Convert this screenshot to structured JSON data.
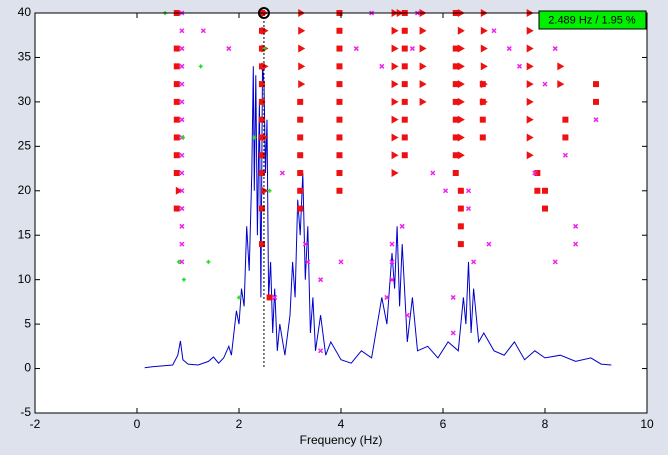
{
  "chart_data": {
    "type": "stabilization",
    "xlabel": "Frequency (Hz)",
    "xlim": [
      -2,
      10
    ],
    "xticks": [
      -2,
      0,
      2,
      4,
      6,
      8,
      10
    ],
    "ylim": [
      -5,
      40
    ],
    "yticks": [
      -5,
      0,
      5,
      10,
      15,
      20,
      25,
      30,
      35,
      40
    ],
    "grid": false,
    "cursor": {
      "x": 2.489,
      "y": 40,
      "label": "2.489 Hz / 1.95 %",
      "color": "#00ee00"
    },
    "series": [
      {
        "marker": "square",
        "color": "#ee1111",
        "x": [
          0.78,
          0.78,
          0.78,
          0.78,
          0.78,
          0.78,
          0.78,
          0.78,
          0.78,
          0.78,
          2.45,
          2.45,
          2.45,
          2.45,
          2.45,
          2.45,
          2.45,
          2.45,
          2.45,
          2.45,
          2.45,
          2.45,
          3.2,
          3.2,
          3.2,
          3.2,
          3.2,
          3.2,
          3.2,
          3.97,
          3.97,
          3.97,
          3.97,
          3.97,
          3.97,
          3.97,
          3.97,
          3.97,
          3.97,
          3.97,
          5.25,
          5.25,
          5.25,
          5.25,
          5.25,
          5.25,
          5.25,
          5.25,
          5.25,
          6.25,
          6.25,
          6.25,
          6.25,
          6.25,
          6.25,
          6.25,
          6.25,
          6.25,
          6.35,
          6.35,
          6.35,
          6.35,
          6.78,
          6.78,
          6.78,
          6.78,
          7.85,
          7.85,
          8.0,
          8.0,
          8.4,
          8.4,
          9.0,
          9.0,
          2.6
        ],
        "values": [
          40,
          36,
          34,
          32,
          30,
          28,
          26,
          24,
          22,
          18,
          40,
          38,
          36,
          34,
          32,
          30,
          28,
          26,
          24,
          22,
          18,
          14,
          30,
          28,
          26,
          24,
          22,
          20,
          18,
          40,
          38,
          36,
          34,
          32,
          30,
          28,
          26,
          24,
          22,
          20,
          40,
          38,
          36,
          34,
          32,
          30,
          28,
          26,
          24,
          40,
          36,
          34,
          32,
          30,
          28,
          26,
          24,
          22,
          18,
          16,
          14,
          20,
          32,
          30,
          28,
          26,
          22,
          20,
          20,
          18,
          28,
          26,
          32,
          30,
          8
        ]
      },
      {
        "marker": "triangle",
        "color": "#ee1111",
        "x": [
          0.82,
          2.5,
          2.5,
          2.5,
          2.5,
          2.5,
          2.5,
          3.22,
          3.22,
          3.22,
          3.22,
          3.22,
          5.05,
          5.05,
          5.05,
          5.05,
          5.05,
          5.05,
          5.05,
          5.05,
          5.05,
          5.05,
          5.15,
          5.6,
          5.6,
          5.6,
          5.6,
          5.6,
          5.6,
          6.35,
          6.35,
          6.35,
          6.35,
          6.35,
          6.35,
          6.35,
          6.35,
          6.35,
          6.8,
          6.8,
          6.8,
          6.8,
          6.8,
          6.8,
          7.7,
          7.7,
          7.7,
          7.7,
          7.7,
          7.7,
          7.7,
          7.7,
          7.7,
          8.3,
          8.3
        ],
        "values": [
          20,
          40,
          38,
          36,
          34,
          26,
          20,
          40,
          38,
          36,
          34,
          32,
          40,
          38,
          36,
          34,
          32,
          30,
          28,
          26,
          24,
          22,
          40,
          40,
          38,
          36,
          34,
          32,
          30,
          40,
          38,
          36,
          34,
          32,
          30,
          28,
          26,
          24,
          40,
          38,
          36,
          34,
          32,
          30,
          40,
          38,
          36,
          34,
          32,
          30,
          28,
          26,
          24,
          34,
          32
        ]
      },
      {
        "marker": "cross",
        "color": "#ee22ee",
        "x": [
          0.88,
          0.88,
          0.88,
          0.88,
          0.88,
          0.88,
          0.88,
          0.88,
          0.88,
          0.88,
          0.88,
          0.88,
          0.88,
          0.88,
          0.88,
          1.3,
          1.8,
          2.7,
          2.85,
          3.3,
          3.35,
          3.6,
          3.6,
          4.0,
          4.3,
          4.8,
          5.0,
          5.0,
          5.0,
          5.2,
          5.4,
          4.9,
          5.3,
          5.8,
          6.05,
          6.2,
          6.2,
          6.5,
          6.5,
          6.6,
          6.9,
          7.0,
          7.3,
          7.5,
          7.8,
          8.0,
          8.2,
          8.4,
          8.6,
          8.6,
          8.2,
          9.0,
          8.5,
          5.5,
          4.6
        ],
        "values": [
          40,
          38,
          36,
          34,
          32,
          30,
          28,
          26,
          24,
          22,
          20,
          18,
          16,
          14,
          12,
          38,
          36,
          8,
          22,
          14,
          12,
          10,
          2,
          12,
          36,
          34,
          14,
          12,
          10,
          16,
          36,
          8,
          6,
          22,
          20,
          8,
          4,
          20,
          18,
          12,
          14,
          38,
          36,
          34,
          22,
          32,
          36,
          24,
          16,
          14,
          12,
          28,
          40,
          40,
          40
        ]
      },
      {
        "marker": "dot",
        "color": "#22dd22",
        "x": [
          0.55,
          1.25,
          0.82,
          0.92,
          1.4,
          2.3,
          2.5,
          2.6,
          2.0,
          0.9
        ],
        "values": [
          40,
          34,
          12,
          10,
          12,
          26,
          36,
          20,
          8,
          26
        ]
      },
      {
        "marker": "line",
        "color": "#0000cc",
        "x": [
          0.15,
          0.3,
          0.5,
          0.7,
          0.8,
          0.85,
          0.9,
          1.0,
          1.2,
          1.4,
          1.5,
          1.6,
          1.7,
          1.8,
          1.85,
          1.9,
          1.95,
          2.0,
          2.05,
          2.1,
          2.15,
          2.2,
          2.25,
          2.28,
          2.3,
          2.33,
          2.36,
          2.4,
          2.43,
          2.46,
          2.49,
          2.52,
          2.55,
          2.58,
          2.62,
          2.66,
          2.7,
          2.75,
          2.8,
          2.9,
          3.0,
          3.05,
          3.1,
          3.15,
          3.2,
          3.25,
          3.3,
          3.35,
          3.4,
          3.45,
          3.5,
          3.6,
          3.7,
          3.8,
          4.0,
          4.2,
          4.4,
          4.6,
          4.8,
          4.9,
          5.0,
          5.05,
          5.1,
          5.15,
          5.2,
          5.3,
          5.4,
          5.5,
          5.7,
          5.9,
          6.1,
          6.3,
          6.4,
          6.45,
          6.5,
          6.55,
          6.6,
          6.7,
          6.8,
          7.0,
          7.2,
          7.4,
          7.6,
          7.8,
          8.0,
          8.3,
          8.6,
          8.9,
          9.1,
          9.3
        ],
        "values": [
          0.1,
          0.2,
          0.3,
          0.4,
          1.5,
          3.1,
          1.0,
          0.5,
          0.4,
          0.8,
          1.3,
          0.6,
          1.2,
          2.5,
          1.5,
          4.0,
          6.5,
          5.0,
          9,
          7,
          16,
          11,
          22,
          34,
          20,
          33,
          15,
          30,
          8,
          34,
          32,
          22,
          28,
          8,
          12,
          4,
          9,
          2,
          5,
          1.5,
          6,
          12,
          8,
          19,
          15,
          22,
          10,
          16,
          4,
          8,
          2,
          6,
          1.5,
          3,
          1,
          0.6,
          2,
          1.2,
          8,
          5,
          13,
          9,
          16,
          7,
          14,
          3,
          8,
          2,
          2.5,
          1.2,
          3,
          2,
          8,
          5,
          12,
          4,
          9,
          3,
          4,
          2,
          1.5,
          3,
          1,
          2,
          1.2,
          1.5,
          0.8,
          1.2,
          0.5,
          0.4
        ]
      }
    ]
  }
}
